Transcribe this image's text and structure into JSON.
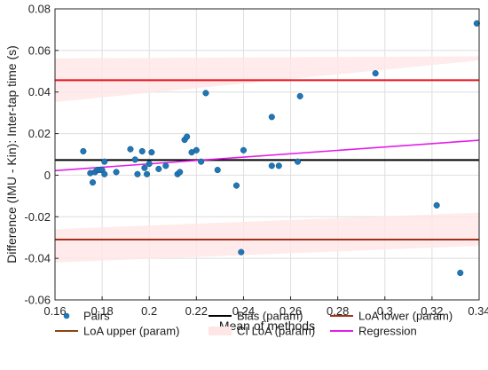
{
  "chart_data": {
    "type": "scatter",
    "xlabel": "Mean of methods",
    "ylabel": "Difference (IMU - Kin): Inter-tap time (s)",
    "xlim": [
      0.16,
      0.34
    ],
    "ylim": [
      -0.06,
      0.08
    ],
    "xticks": [
      0.16,
      0.18,
      0.2,
      0.22,
      0.24,
      0.26,
      0.28,
      0.3,
      0.32,
      0.34
    ],
    "xtick_labels": [
      "0.16",
      "0.18",
      "0.2",
      "0.22",
      "0.24",
      "0.26",
      "0.28",
      "0.3",
      "0.32",
      "0.34"
    ],
    "yticks": [
      -0.06,
      -0.04,
      -0.02,
      0,
      0.02,
      0.04,
      0.06,
      0.08
    ],
    "ytick_labels": [
      "-0.06",
      "-0.04",
      "-0.02",
      "0",
      "0.02",
      "0.04",
      "0.06",
      "0.08"
    ],
    "grid": true,
    "legend_position": "bottom",
    "colors": {
      "pairs": "#1f77b4",
      "bias": "#000000",
      "loa_lower": "#a0301a",
      "loa_upper": "#8b4513",
      "loa_upper_line": "#e8101a",
      "ci_loa": "#ffe6e6",
      "regression": "#e21ee8"
    },
    "series": [
      {
        "name": "Pairs",
        "points": [
          [
            0.172,
            0.0115
          ],
          [
            0.175,
            0.001
          ],
          [
            0.176,
            -0.0035
          ],
          [
            0.177,
            0.0015
          ],
          [
            0.178,
            0.0025
          ],
          [
            0.179,
            0.0025
          ],
          [
            0.18,
            0.0025
          ],
          [
            0.181,
            0.0065
          ],
          [
            0.181,
            0.0005
          ],
          [
            0.186,
            0.0015
          ],
          [
            0.192,
            0.0125
          ],
          [
            0.194,
            0.0075
          ],
          [
            0.195,
            0.0005
          ],
          [
            0.197,
            0.0115
          ],
          [
            0.198,
            0.0035
          ],
          [
            0.199,
            0.0005
          ],
          [
            0.2,
            0.0055
          ],
          [
            0.201,
            0.011
          ],
          [
            0.204,
            0.003
          ],
          [
            0.207,
            0.0045
          ],
          [
            0.212,
            0.0005
          ],
          [
            0.213,
            0.0015
          ],
          [
            0.215,
            0.017
          ],
          [
            0.216,
            0.0185
          ],
          [
            0.218,
            0.011
          ],
          [
            0.22,
            0.012
          ],
          [
            0.222,
            0.0065
          ],
          [
            0.224,
            0.0395
          ],
          [
            0.229,
            0.0025
          ],
          [
            0.237,
            -0.005
          ],
          [
            0.239,
            -0.037
          ],
          [
            0.24,
            0.012
          ],
          [
            0.252,
            0.0045
          ],
          [
            0.252,
            0.028
          ],
          [
            0.255,
            0.0045
          ],
          [
            0.263,
            0.0065
          ],
          [
            0.264,
            0.038
          ],
          [
            0.296,
            0.049
          ],
          [
            0.322,
            -0.0145
          ],
          [
            0.332,
            -0.047
          ],
          [
            0.339,
            0.073
          ]
        ]
      },
      {
        "name": "Bias (param)",
        "value": 0.0073
      },
      {
        "name": "LoA lower (param)",
        "value": -0.031
      },
      {
        "name": "LoA upper (param)",
        "value": 0.0457
      },
      {
        "name": "CI LoA (param)",
        "upper_band": {
          "x": [
            0.16,
            0.34
          ],
          "lo": [
            0.0352,
            0.0552
          ],
          "hi": [
            0.0562,
            0.0572
          ]
        },
        "lower_band": {
          "x": [
            0.16,
            0.34
          ],
          "lo": [
            -0.042,
            -0.034
          ],
          "hi": [
            -0.026,
            -0.018
          ]
        }
      },
      {
        "name": "Regression",
        "x": [
          0.16,
          0.34
        ],
        "y": [
          0.0022,
          0.0168
        ]
      }
    ],
    "legend": [
      {
        "key": "pairs",
        "label": "Pairs",
        "kind": "marker"
      },
      {
        "key": "bias",
        "label": "Bias (param)",
        "kind": "line"
      },
      {
        "key": "loa_lower",
        "label": "LoA lower (param)",
        "kind": "line"
      },
      {
        "key": "loa_upper",
        "label": "LoA upper (param)",
        "kind": "line"
      },
      {
        "key": "ci_loa",
        "label": "CI LoA (param)",
        "kind": "patch"
      },
      {
        "key": "regression",
        "label": "Regression",
        "kind": "line"
      }
    ]
  }
}
